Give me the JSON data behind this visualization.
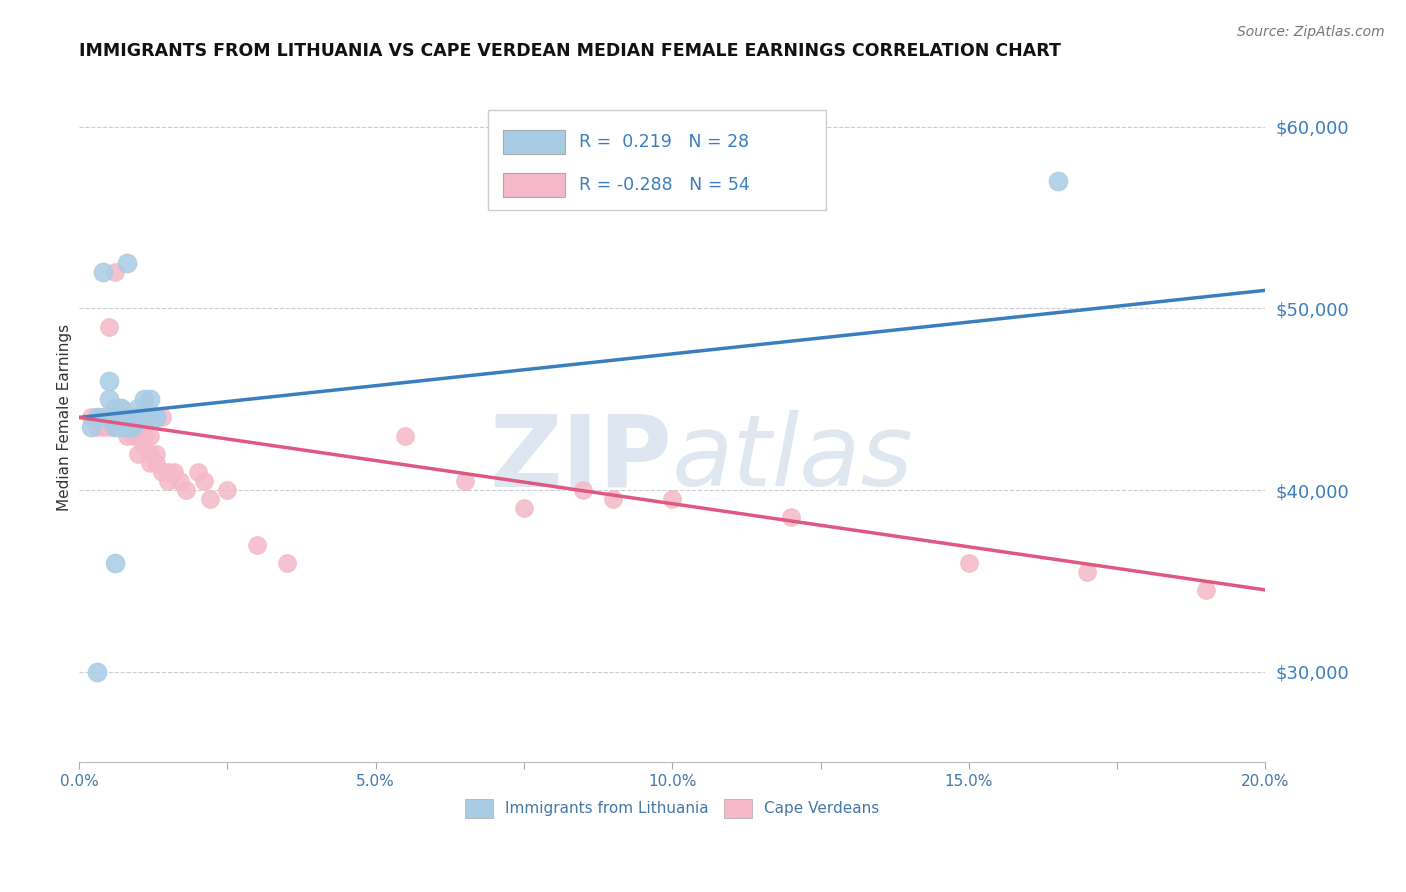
{
  "title": "IMMIGRANTS FROM LITHUANIA VS CAPE VERDEAN MEDIAN FEMALE EARNINGS CORRELATION CHART",
  "source": "Source: ZipAtlas.com",
  "ylabel": "Median Female Earnings",
  "x_min": 0.0,
  "x_max": 0.2,
  "y_min": 25000,
  "y_max": 63000,
  "yticks": [
    30000,
    40000,
    50000,
    60000
  ],
  "ytick_labels": [
    "$30,000",
    "$40,000",
    "$50,000",
    "$60,000"
  ],
  "xticks": [
    0.0,
    0.025,
    0.05,
    0.075,
    0.1,
    0.125,
    0.15,
    0.175,
    0.2
  ],
  "xtick_labels": [
    "0.0%",
    "",
    "5.0%",
    "",
    "10.0%",
    "",
    "15.0%",
    "",
    "20.0%"
  ],
  "blue_R": 0.219,
  "blue_N": 28,
  "pink_R": -0.288,
  "pink_N": 54,
  "legend_label_blue": "Immigrants from Lithuania",
  "legend_label_pink": "Cape Verdeans",
  "blue_color": "#a8cce4",
  "pink_color": "#f4b8c8",
  "blue_line_color": "#3a7ebf",
  "pink_line_color": "#e05880",
  "watermark_zip": "ZIP",
  "watermark_atlas": "atlas",
  "blue_scatter_x": [
    0.002,
    0.003,
    0.004,
    0.004,
    0.005,
    0.005,
    0.005,
    0.006,
    0.006,
    0.006,
    0.007,
    0.007,
    0.007,
    0.008,
    0.008,
    0.008,
    0.009,
    0.009,
    0.01,
    0.01,
    0.011,
    0.011,
    0.012,
    0.013,
    0.013,
    0.003,
    0.006,
    0.165
  ],
  "blue_scatter_y": [
    43500,
    44000,
    44000,
    52000,
    45000,
    44000,
    46000,
    44000,
    44500,
    43500,
    44000,
    44500,
    43500,
    44000,
    43500,
    52500,
    44000,
    43500,
    44500,
    44000,
    44000,
    45000,
    45000,
    44000,
    44000,
    30000,
    36000,
    57000
  ],
  "pink_scatter_x": [
    0.002,
    0.003,
    0.003,
    0.004,
    0.004,
    0.005,
    0.005,
    0.005,
    0.006,
    0.006,
    0.006,
    0.007,
    0.007,
    0.007,
    0.008,
    0.008,
    0.008,
    0.009,
    0.009,
    0.009,
    0.01,
    0.01,
    0.01,
    0.011,
    0.011,
    0.011,
    0.012,
    0.012,
    0.012,
    0.013,
    0.013,
    0.014,
    0.014,
    0.015,
    0.015,
    0.016,
    0.017,
    0.018,
    0.02,
    0.021,
    0.022,
    0.025,
    0.03,
    0.035,
    0.055,
    0.065,
    0.075,
    0.085,
    0.09,
    0.1,
    0.12,
    0.15,
    0.17,
    0.19
  ],
  "pink_scatter_y": [
    44000,
    44000,
    43500,
    44000,
    43500,
    44000,
    43500,
    49000,
    44000,
    43500,
    52000,
    44500,
    44000,
    43500,
    44000,
    43500,
    43000,
    44000,
    43500,
    43000,
    44000,
    43000,
    42000,
    43500,
    43000,
    42500,
    43000,
    42000,
    41500,
    42000,
    41500,
    44000,
    41000,
    41000,
    40500,
    41000,
    40500,
    40000,
    41000,
    40500,
    39500,
    40000,
    37000,
    36000,
    43000,
    40500,
    39000,
    40000,
    39500,
    39500,
    38500,
    36000,
    35500,
    34500
  ],
  "blue_line_y0": 44000,
  "blue_line_y1": 51000,
  "pink_line_y0": 44000,
  "pink_line_y1": 34500
}
